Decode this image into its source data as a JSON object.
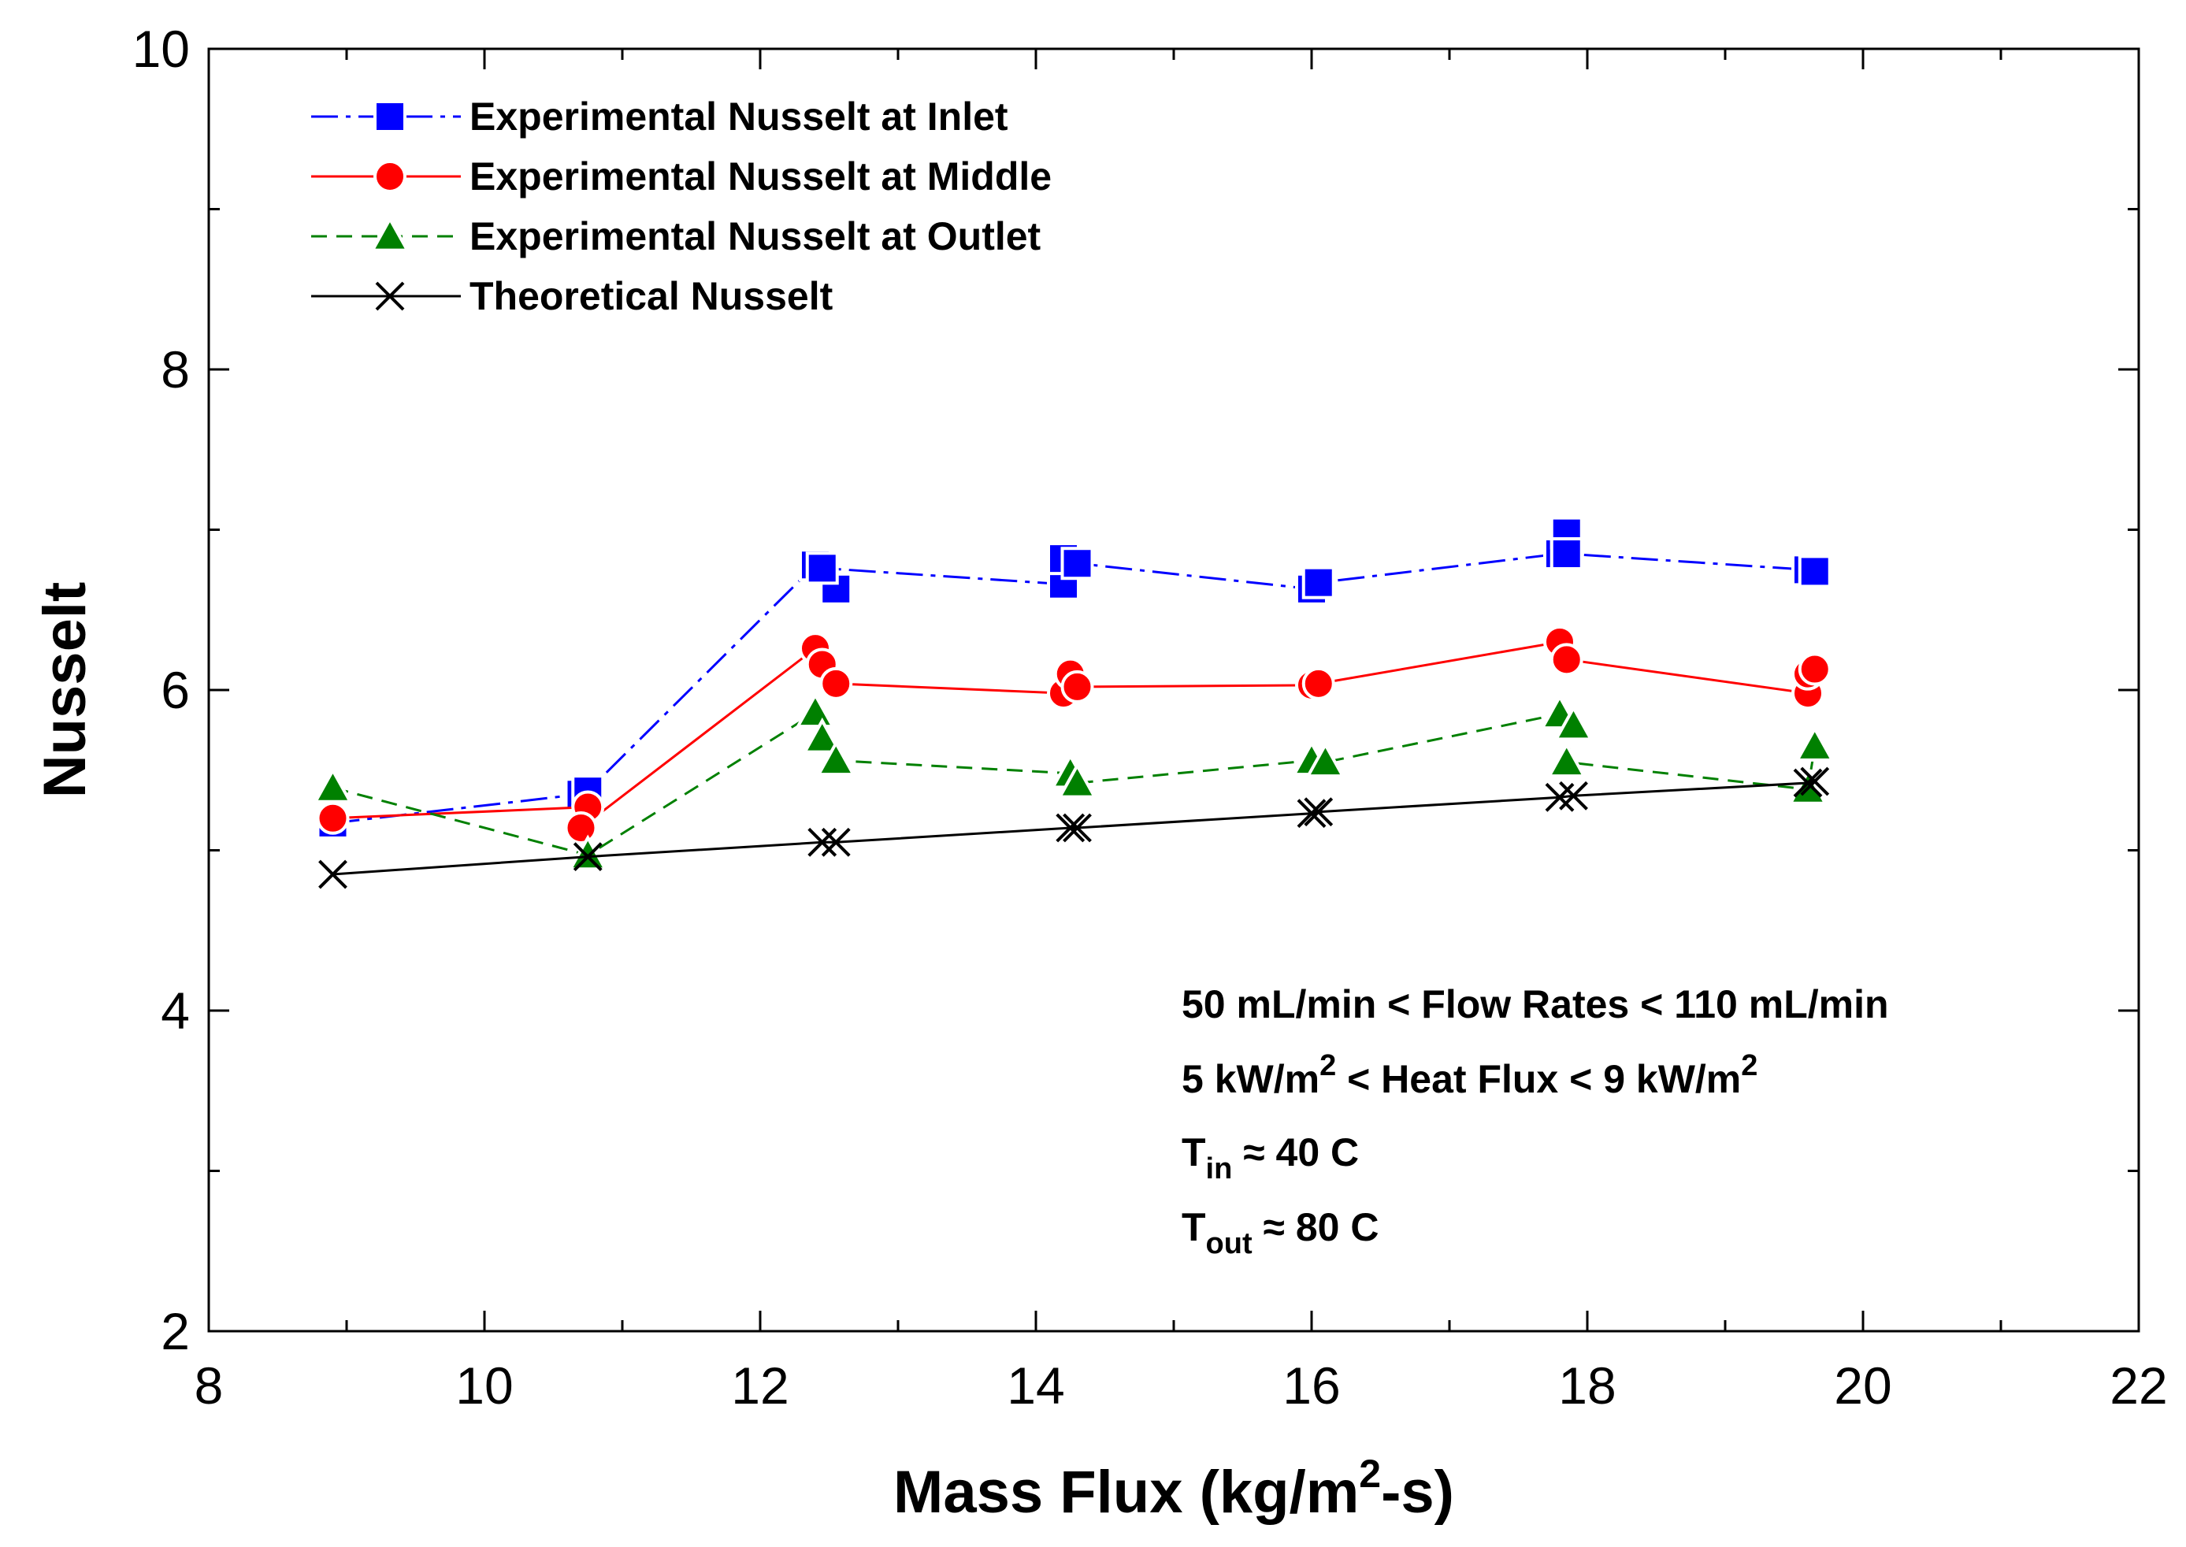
{
  "chart_data": {
    "type": "line",
    "xlabel": "Mass Flux (kg/m2-s)",
    "xlabel_parts": {
      "pre": "Mass Flux (kg/m",
      "sup": "2",
      "post": "-s)"
    },
    "ylabel": "Nusselt",
    "xlim": [
      8,
      22
    ],
    "ylim": [
      2,
      10
    ],
    "xticks": [
      8,
      10,
      12,
      14,
      16,
      18,
      20,
      22
    ],
    "yticks": [
      2,
      4,
      6,
      8,
      10
    ],
    "legend_position": "top-left",
    "series": [
      {
        "name": "Experimental Nusselt at Inlet",
        "color": "#0000ff",
        "marker": "square",
        "line_style": "dash-dot",
        "points": [
          [
            8.9,
            5.17
          ],
          [
            10.7,
            5.35
          ],
          [
            10.75,
            5.37
          ],
          [
            12.4,
            6.78
          ],
          [
            12.55,
            6.63
          ],
          [
            12.45,
            6.76
          ],
          [
            14.2,
            6.66
          ],
          [
            14.2,
            6.82
          ],
          [
            14.3,
            6.79
          ],
          [
            16.0,
            6.63
          ],
          [
            16.05,
            6.67
          ],
          [
            17.8,
            6.85
          ],
          [
            17.85,
            6.98
          ],
          [
            17.85,
            6.85
          ],
          [
            19.6,
            6.75
          ],
          [
            19.65,
            6.74
          ]
        ]
      },
      {
        "name": "Experimental Nusselt at Middle",
        "color": "#ff0000",
        "marker": "circle",
        "line_style": "solid",
        "points": [
          [
            8.9,
            5.2
          ],
          [
            10.75,
            5.27
          ],
          [
            10.7,
            5.14
          ],
          [
            12.4,
            6.26
          ],
          [
            12.45,
            6.16
          ],
          [
            12.55,
            6.04
          ],
          [
            14.2,
            5.98
          ],
          [
            14.25,
            6.1
          ],
          [
            14.3,
            6.02
          ],
          [
            16.0,
            6.03
          ],
          [
            16.05,
            6.04
          ],
          [
            17.8,
            6.3
          ],
          [
            17.85,
            6.19
          ],
          [
            19.6,
            5.98
          ],
          [
            19.6,
            6.1
          ],
          [
            19.65,
            6.13
          ]
        ]
      },
      {
        "name": "Experimental Nusselt at Outlet",
        "color": "#008000",
        "marker": "triangle",
        "line_style": "dashed",
        "points": [
          [
            8.9,
            5.39
          ],
          [
            10.75,
            4.97
          ],
          [
            12.4,
            5.86
          ],
          [
            12.45,
            5.7
          ],
          [
            12.55,
            5.56
          ],
          [
            14.25,
            5.48
          ],
          [
            14.3,
            5.42
          ],
          [
            16.0,
            5.56
          ],
          [
            16.1,
            5.55
          ],
          [
            17.8,
            5.85
          ],
          [
            17.9,
            5.78
          ],
          [
            17.85,
            5.55
          ],
          [
            19.6,
            5.38
          ],
          [
            19.65,
            5.65
          ]
        ]
      },
      {
        "name": "Theoretical Nusselt",
        "color": "#000000",
        "marker": "x",
        "line_style": "solid",
        "points": [
          [
            8.9,
            4.85
          ],
          [
            10.75,
            4.96
          ],
          [
            12.45,
            5.05
          ],
          [
            12.55,
            5.05
          ],
          [
            14.25,
            5.14
          ],
          [
            14.3,
            5.14
          ],
          [
            16.0,
            5.23
          ],
          [
            16.05,
            5.24
          ],
          [
            17.8,
            5.33
          ],
          [
            17.9,
            5.34
          ],
          [
            19.6,
            5.42
          ],
          [
            19.65,
            5.43
          ]
        ]
      }
    ],
    "annotations": [
      {
        "parts": [
          {
            "t": "50 mL/min < Flow Rates < 110 mL/min"
          }
        ]
      },
      {
        "parts": [
          {
            "t": "5 kW/m"
          },
          {
            "t": "2",
            "sup": true
          },
          {
            "t": " < Heat Flux < 9 kW/m"
          },
          {
            "t": "2",
            "sup": true
          }
        ]
      },
      {
        "parts": [
          {
            "t": "T"
          },
          {
            "t": "in",
            "sub": true
          },
          {
            "t": " ≈ 40 C"
          }
        ]
      },
      {
        "parts": [
          {
            "t": "T"
          },
          {
            "t": "out",
            "sub": true
          },
          {
            "t": " ≈ 80 C"
          }
        ]
      }
    ]
  }
}
